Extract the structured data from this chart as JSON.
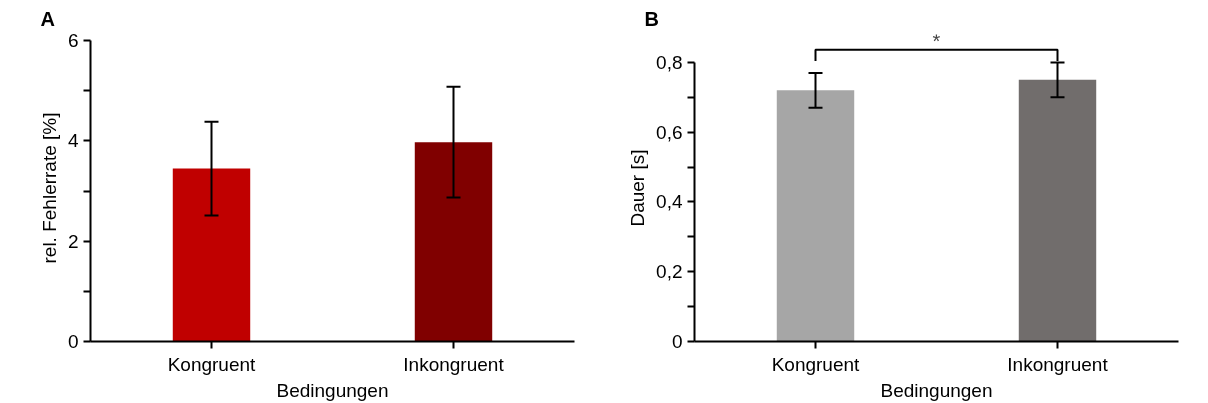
{
  "chart_data": [
    {
      "type": "bar",
      "title": "A",
      "xlabel": "Bedingungen",
      "ylabel": "rel. Fehlerrate [%]",
      "categories": [
        "Kongruent",
        "Inkongruent"
      ],
      "values": [
        3.45,
        3.97
      ],
      "colors": [
        "#c00000",
        "#800000"
      ],
      "errors": [
        [
          2.51,
          4.38
        ],
        [
          2.87,
          5.08
        ]
      ],
      "ylim": [
        0,
        6
      ],
      "yticks": [
        0,
        {
          "value": 1,
          "label": null
        },
        2,
        {
          "value": 3,
          "label": null
        },
        4,
        {
          "value": 5,
          "label": null
        },
        6
      ],
      "grid": false
    },
    {
      "type": "bar",
      "title": "B",
      "xlabel": "Bedingungen",
      "ylabel": "Dauer [s]",
      "categories": [
        "Kongruent",
        "Inkongruent"
      ],
      "values": [
        0.72,
        0.75
      ],
      "colors": [
        "#a6a6a6",
        "#716d6c"
      ],
      "errors": [
        [
          0.67,
          0.77
        ],
        [
          0.7,
          0.8
        ]
      ],
      "ylim": [
        0,
        0.8
      ],
      "yticks": [
        {
          "value": 0,
          "label": "0"
        },
        {
          "value": 0.1,
          "label": null
        },
        {
          "value": 0.2,
          "label": "0,2"
        },
        {
          "value": 0.3,
          "label": null
        },
        {
          "value": 0.4,
          "label": "0,4"
        },
        {
          "value": 0.5,
          "label": null
        },
        {
          "value": 0.6,
          "label": "0,6"
        },
        {
          "value": 0.7,
          "label": null
        },
        {
          "value": 0.8,
          "label": "0,8"
        }
      ],
      "grid": false,
      "annotations": [
        "*"
      ]
    }
  ]
}
